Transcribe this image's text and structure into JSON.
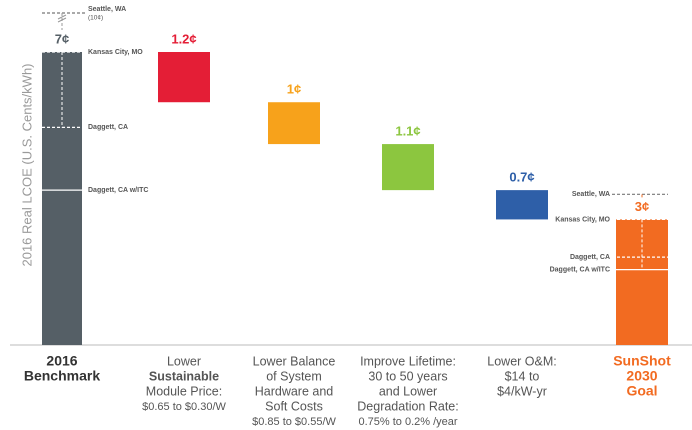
{
  "chart_data": {
    "type": "waterfall",
    "y_label": "2016 Real LCOE (U.S. Cents/kWh)",
    "ylim": [
      0,
      7
    ],
    "categories": [
      [
        "2016",
        "Benchmark"
      ],
      [
        "Lower",
        "Sustainable",
        "Module Price:",
        "$0.65 to $0.30/W"
      ],
      [
        "Lower Balance",
        "of System",
        "Hardware and",
        "Soft Costs",
        "$0.85 to $0.55/W"
      ],
      [
        "Improve Lifetime:",
        "30 to 50 years",
        "and Lower",
        "Degradation Rate:",
        "0.75% to 0.2% /year"
      ],
      [
        "Lower O&M:",
        "$14 to",
        "$4/kW-yr"
      ],
      [
        "SunShot",
        "2030",
        "Goal"
      ]
    ],
    "measure": [
      "total",
      "decrease",
      "decrease",
      "decrease",
      "decrease",
      "total"
    ],
    "values": [
      7,
      1.2,
      1,
      1.1,
      0.7,
      3
    ],
    "value_labels": [
      "7¢",
      "1.2¢",
      "1¢",
      "1.1¢",
      "0.7¢",
      "3¢"
    ],
    "colors": [
      "#555f66",
      "#e41e36",
      "#f7a21b",
      "#8cc63f",
      "#2e5fa8",
      "#f26b21"
    ],
    "annotations": [
      {
        "bar": 0,
        "label": "Seattle, WA",
        "note": "(10¢)"
      },
      {
        "bar": 0,
        "label": "Kansas City, MO",
        "value": 7
      },
      {
        "bar": 0,
        "label": "Daggett, CA",
        "value": 5.2
      },
      {
        "bar": 0,
        "label": "Daggett, CA w/ITC",
        "value": 3.7
      },
      {
        "bar": 5,
        "label": "Seattle, WA",
        "value": 3.6
      },
      {
        "bar": 5,
        "label": "Kansas City, MO",
        "value": 3
      },
      {
        "bar": 5,
        "label": "Daggett, CA",
        "value": 2.1
      },
      {
        "bar": 5,
        "label": "Daggett, CA w/ITC",
        "value": 1.8
      }
    ]
  }
}
